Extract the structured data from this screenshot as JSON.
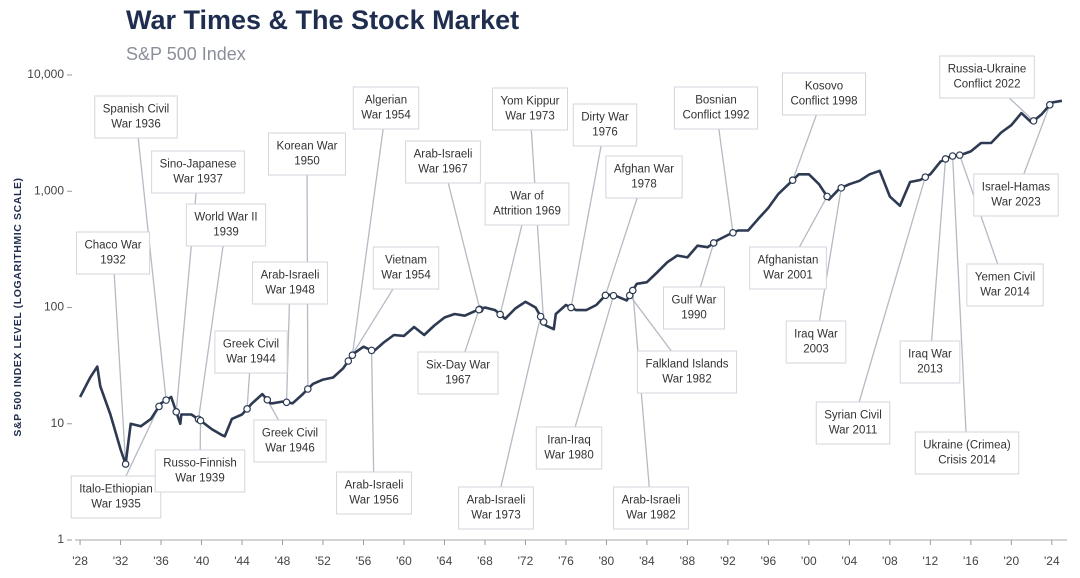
{
  "chart_data": {
    "type": "line",
    "title": "War Times & The Stock Market",
    "subtitle": "S&P 500 Index",
    "y_label": "S&P 500 INDEX LEVEL (LOGARITHMIC SCALE)",
    "log_scale": true,
    "grid": false,
    "color": "#2d3a52",
    "xlim": [
      1927.5,
      2025.5
    ],
    "ylim": [
      1,
      10000
    ],
    "xticks": [
      {
        "value": 1928,
        "label": "'28"
      },
      {
        "value": 1932,
        "label": "'32"
      },
      {
        "value": 1936,
        "label": "'36"
      },
      {
        "value": 1940,
        "label": "'40"
      },
      {
        "value": 1944,
        "label": "'44"
      },
      {
        "value": 1948,
        "label": "'48"
      },
      {
        "value": 1952,
        "label": "'52"
      },
      {
        "value": 1956,
        "label": "'56"
      },
      {
        "value": 1960,
        "label": "'60"
      },
      {
        "value": 1964,
        "label": "'64"
      },
      {
        "value": 1968,
        "label": "'68"
      },
      {
        "value": 1972,
        "label": "'72"
      },
      {
        "value": 1976,
        "label": "'76"
      },
      {
        "value": 1980,
        "label": "'80"
      },
      {
        "value": 1984,
        "label": "'84"
      },
      {
        "value": 1988,
        "label": "'88"
      },
      {
        "value": 1992,
        "label": "'92"
      },
      {
        "value": 1996,
        "label": "'96"
      },
      {
        "value": 2000,
        "label": "'00"
      },
      {
        "value": 2004,
        "label": "'04"
      },
      {
        "value": 2008,
        "label": "'08"
      },
      {
        "value": 2012,
        "label": "'12"
      },
      {
        "value": 2016,
        "label": "'16"
      },
      {
        "value": 2020,
        "label": "'20"
      },
      {
        "value": 2024,
        "label": "'24"
      }
    ],
    "yticks": [
      1,
      10,
      100,
      {
        "value": 1000,
        "label": "1,000"
      },
      {
        "value": 10000,
        "label": "10,000"
      }
    ],
    "x": [
      1928,
      1929,
      1929.7,
      1930,
      1931,
      1932,
      1932.5,
      1933,
      1934,
      1935,
      1936,
      1937,
      1937.9,
      1938,
      1939,
      1940,
      1941,
      1942,
      1942.3,
      1943,
      1944,
      1945,
      1946,
      1946.8,
      1947,
      1948,
      1949,
      1950,
      1951,
      1952,
      1953,
      1954,
      1955,
      1956,
      1957,
      1958,
      1959,
      1960,
      1961,
      1962,
      1963,
      1964,
      1965,
      1966,
      1967,
      1968,
      1969,
      1970,
      1971,
      1972,
      1973,
      1974,
      1974.8,
      1975,
      1976,
      1977,
      1978,
      1979,
      1980,
      1981,
      1982,
      1983,
      1984,
      1985,
      1986,
      1987,
      1988,
      1989,
      1990,
      1991,
      1992,
      1993,
      1994,
      1995,
      1996,
      1997,
      1998,
      1999,
      2000,
      2001,
      2002,
      2003,
      2004,
      2005,
      2006,
      2007,
      2008,
      2009,
      2010,
      2011,
      2012,
      2013,
      2014,
      2015,
      2016,
      2017,
      2018,
      2019,
      2020,
      2021,
      2022,
      2023,
      2024,
      2025
    ],
    "values": [
      17,
      25,
      31,
      21,
      12,
      6,
      4.5,
      10,
      9.5,
      11,
      15,
      17,
      10,
      12,
      12,
      10.5,
      9,
      8,
      7.8,
      11,
      12,
      15,
      18,
      15,
      15,
      15.5,
      15,
      18,
      22,
      24,
      25,
      30,
      40,
      46,
      42,
      50,
      58,
      57,
      68,
      58,
      70,
      82,
      88,
      85,
      93,
      100,
      95,
      80,
      98,
      112,
      100,
      70,
      65,
      88,
      105,
      95,
      95,
      105,
      130,
      125,
      115,
      160,
      165,
      200,
      245,
      280,
      270,
      340,
      330,
      380,
      420,
      460,
      460,
      580,
      720,
      950,
      1150,
      1400,
      1400,
      1150,
      850,
      1050,
      1150,
      1230,
      1400,
      1500,
      900,
      750,
      1200,
      1250,
      1400,
      1800,
      2000,
      2050,
      2200,
      2600,
      2600,
      3200,
      3700,
      4700,
      3900,
      4600,
      5800,
      6000
    ],
    "annotations": [
      {
        "label": [
          "Spanish Civil",
          "War 1936"
        ],
        "x": 1936.5
      },
      {
        "label": [
          "Chaco War",
          "1932"
        ],
        "x": 1932.5
      },
      {
        "label": [
          "Italo-Ethiopian",
          "War 1935"
        ],
        "x": 1935.8
      },
      {
        "label": [
          "Sino-Japanese",
          "War 1937"
        ],
        "x": 1937.5
      },
      {
        "label": [
          "World War II",
          "1939"
        ],
        "x": 1939.7
      },
      {
        "label": [
          "Russo-Finnish",
          "War 1939"
        ],
        "x": 1939.9
      },
      {
        "label": [
          "Korean War",
          "1950"
        ],
        "x": 1950.5
      },
      {
        "label": [
          "Arab-Israeli",
          "War 1948"
        ],
        "x": 1948.4
      },
      {
        "label": [
          "Greek Civil",
          "War 1944"
        ],
        "x": 1944.5
      },
      {
        "label": [
          "Greek Civil",
          "War 1946"
        ],
        "x": 1946.5
      },
      {
        "label": [
          "Algerian",
          "War 1954"
        ],
        "x": 1954.9
      },
      {
        "label": [
          "Vietnam",
          "War 1954"
        ],
        "x": 1954.5
      },
      {
        "label": [
          "Arab-Israeli",
          "War 1956"
        ],
        "x": 1956.8
      },
      {
        "label": [
          "Arab-Israeli",
          "War 1967"
        ],
        "x": 1967.5
      },
      {
        "label": [
          "Yom Kippur",
          "War 1973"
        ],
        "x": 1973.8
      },
      {
        "label": [
          "War of",
          "Attrition 1969"
        ],
        "x": 1969.5
      },
      {
        "label": [
          "Six-Day War",
          "1967"
        ],
        "x": 1967.4
      },
      {
        "label": [
          "Arab-Israeli",
          "War 1973"
        ],
        "x": 1973.5
      },
      {
        "label": [
          "Dirty War",
          "1976"
        ],
        "x": 1976.5
      },
      {
        "label": [
          "Afghan War",
          "1978"
        ],
        "x": 1979.9
      },
      {
        "label": [
          "Iran-Iraq",
          "War 1980"
        ],
        "x": 1980.7
      },
      {
        "label": [
          "Falkland Islands",
          "War 1982"
        ],
        "x": 1982.3
      },
      {
        "label": [
          "Arab-Israeli",
          "War 1982"
        ],
        "x": 1982.6
      },
      {
        "label": [
          "Bosnian",
          "Conflict 1992"
        ],
        "x": 1992.5
      },
      {
        "label": [
          "Gulf War",
          "1990"
        ],
        "x": 1990.6
      },
      {
        "label": [
          "Kosovo",
          "Conflict 1998"
        ],
        "x": 1998.4
      },
      {
        "label": [
          "Afghanistan",
          "War 2001"
        ],
        "x": 2001.8
      },
      {
        "label": [
          "Iraq War",
          "2003"
        ],
        "x": 2003.2
      },
      {
        "label": [
          "Syrian Civil",
          "War 2011"
        ],
        "x": 2011.5
      },
      {
        "label": [
          "Iraq War",
          "2013"
        ],
        "x": 2013.5
      },
      {
        "label": [
          "Ukraine (Crimea)",
          "Crisis 2014"
        ],
        "x": 2014.2
      },
      {
        "label": [
          "Yemen Civil",
          "War 2014"
        ],
        "x": 2014.9
      },
      {
        "label": [
          "Russia-Ukraine",
          "Conflict 2022"
        ],
        "x": 2022.2
      },
      {
        "label": [
          "Israel-Hamas",
          "War 2023"
        ],
        "x": 2023.8
      }
    ]
  }
}
